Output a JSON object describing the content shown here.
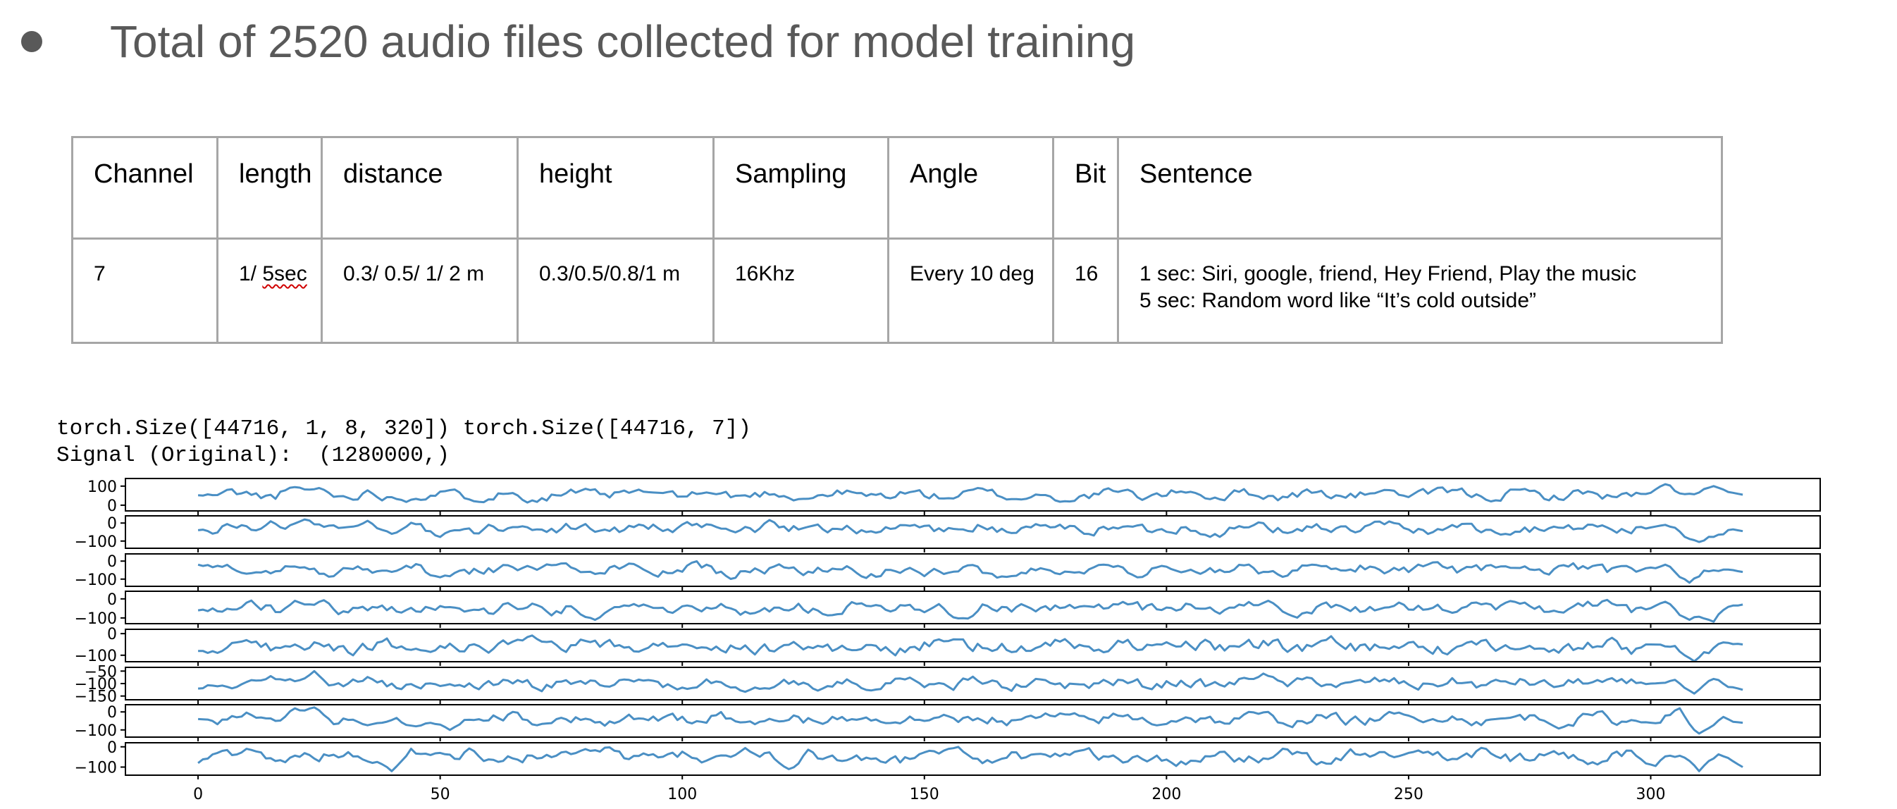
{
  "title": "Total of 2520 audio files collected for model training",
  "table": {
    "headers": [
      "Channel",
      "length",
      "distance",
      "height",
      "Sampling",
      "Angle",
      "Bit",
      "Sentence"
    ],
    "row": {
      "channel": "7",
      "length_prefix": "1/ ",
      "length_flagged": "5sec",
      "distance": "0.3/ 0.5/ 1/ 2 m",
      "height": "0.3/0.5/0.8/1 m",
      "sampling": "16Khz",
      "angle": "Every 10 deg",
      "bit": "16",
      "sentence_line1": "1 sec: Siri, google, friend, Hey Friend, Play the music",
      "sentence_line2": "5 sec: Random word like “It’s cold outside”"
    }
  },
  "console": {
    "line1": "torch.Size([44716, 1, 8, 320]) torch.Size([44716, 7])",
    "line2": "Signal (Original):  (1280000,)"
  },
  "chart_data": {
    "type": "line",
    "line_color": "#4a8fc4",
    "xlim": [
      -15,
      335
    ],
    "x_ticks": [
      "0",
      "50",
      "100",
      "150",
      "200",
      "250",
      "300"
    ],
    "x_tick_values": [
      0,
      50,
      100,
      150,
      200,
      250,
      300
    ],
    "n_samples": 320,
    "subplots": [
      {
        "yticks": [
          "100",
          "0"
        ],
        "ytick_values": [
          100,
          0
        ],
        "ylim": [
          -30,
          140
        ]
      },
      {
        "yticks": [
          "0",
          "−100"
        ],
        "ytick_values": [
          0,
          -100
        ],
        "ylim": [
          -140,
          40
        ]
      },
      {
        "yticks": [
          "0",
          "−100"
        ],
        "ytick_values": [
          0,
          -100
        ],
        "ylim": [
          -140,
          40
        ]
      },
      {
        "yticks": [
          "0",
          "−100"
        ],
        "ytick_values": [
          0,
          -100
        ],
        "ylim": [
          -130,
          40
        ]
      },
      {
        "yticks": [
          "0",
          "−100"
        ],
        "ytick_values": [
          0,
          -100
        ],
        "ylim": [
          -130,
          20
        ]
      },
      {
        "yticks": [
          "−50",
          "−100",
          "−150"
        ],
        "ytick_values": [
          -50,
          -100,
          -150
        ],
        "ylim": [
          -165,
          -35
        ]
      },
      {
        "yticks": [
          "0",
          "−100"
        ],
        "ytick_values": [
          0,
          -100
        ],
        "ylim": [
          -140,
          40
        ]
      },
      {
        "yticks": [
          "0",
          "−100"
        ],
        "ytick_values": [
          0,
          -100
        ],
        "ylim": [
          -140,
          20
        ]
      }
    ],
    "series": [
      {
        "base": 55,
        "amp": 30,
        "seed": 11,
        "anchors": [
          [
            0,
            52
          ],
          [
            20,
            95
          ],
          [
            25,
            90
          ],
          [
            95,
            65
          ],
          [
            170,
            30
          ],
          [
            178,
            18
          ],
          [
            205,
            70
          ],
          [
            245,
            80
          ],
          [
            300,
            50
          ],
          [
            303,
            110
          ],
          [
            308,
            60
          ],
          [
            313,
            100
          ],
          [
            317,
            75
          ],
          [
            319,
            55
          ]
        ]
      },
      {
        "base": -30,
        "amp": 35,
        "seed": 23,
        "anchors": [
          [
            0,
            -40
          ],
          [
            15,
            10
          ],
          [
            22,
            20
          ],
          [
            30,
            -25
          ],
          [
            40,
            -60
          ],
          [
            50,
            -90
          ],
          [
            53,
            -40
          ],
          [
            70,
            -35
          ],
          [
            280,
            -20
          ],
          [
            303,
            -10
          ],
          [
            310,
            -105
          ],
          [
            315,
            -100
          ],
          [
            317,
            -25
          ],
          [
            319,
            -45
          ]
        ]
      },
      {
        "base": -50,
        "amp": 35,
        "seed": 37,
        "anchors": [
          [
            0,
            -20
          ],
          [
            10,
            -70
          ],
          [
            20,
            -30
          ],
          [
            40,
            -60
          ],
          [
            50,
            -90
          ],
          [
            80,
            -60
          ],
          [
            180,
            -60
          ],
          [
            230,
            -20
          ],
          [
            303,
            -20
          ],
          [
            308,
            -120
          ],
          [
            314,
            -60
          ],
          [
            317,
            -40
          ],
          [
            319,
            -60
          ]
        ]
      },
      {
        "base": -50,
        "amp": 35,
        "seed": 41,
        "anchors": [
          [
            0,
            -60
          ],
          [
            20,
            -10
          ],
          [
            80,
            -80
          ],
          [
            82,
            -110
          ],
          [
            150,
            -70
          ],
          [
            221,
            -10
          ],
          [
            300,
            -60
          ],
          [
            303,
            -15
          ],
          [
            308,
            -110
          ],
          [
            313,
            -120
          ],
          [
            317,
            -40
          ],
          [
            319,
            -30
          ]
        ]
      },
      {
        "base": -60,
        "amp": 35,
        "seed": 53,
        "anchors": [
          [
            0,
            -80
          ],
          [
            10,
            -30
          ],
          [
            20,
            -50
          ],
          [
            45,
            -70
          ],
          [
            100,
            -50
          ],
          [
            200,
            -40
          ],
          [
            300,
            -50
          ],
          [
            307,
            -70
          ],
          [
            309,
            -130
          ],
          [
            316,
            -40
          ],
          [
            319,
            -50
          ]
        ]
      },
      {
        "base": -100,
        "amp": 25,
        "seed": 61,
        "anchors": [
          [
            0,
            -120
          ],
          [
            15,
            -70
          ],
          [
            24,
            -50
          ],
          [
            50,
            -110
          ],
          [
            220,
            -60
          ],
          [
            300,
            -100
          ],
          [
            305,
            -85
          ],
          [
            309,
            -140
          ],
          [
            316,
            -110
          ],
          [
            319,
            -125
          ]
        ]
      },
      {
        "base": -40,
        "amp": 35,
        "seed": 73,
        "anchors": [
          [
            0,
            -40
          ],
          [
            20,
            20
          ],
          [
            24,
            25
          ],
          [
            45,
            -80
          ],
          [
            52,
            -100
          ],
          [
            150,
            -50
          ],
          [
            255,
            -40
          ],
          [
            300,
            -60
          ],
          [
            306,
            20
          ],
          [
            310,
            -120
          ],
          [
            318,
            -50
          ],
          [
            319,
            -60
          ]
        ]
      },
      {
        "base": -50,
        "amp": 35,
        "seed": 89,
        "anchors": [
          [
            0,
            -80
          ],
          [
            10,
            -10
          ],
          [
            40,
            -120
          ],
          [
            50,
            -30
          ],
          [
            110,
            -50
          ],
          [
            122,
            -110
          ],
          [
            250,
            -30
          ],
          [
            305,
            -50
          ],
          [
            310,
            -120
          ],
          [
            316,
            -40
          ],
          [
            319,
            -100
          ]
        ]
      }
    ]
  }
}
